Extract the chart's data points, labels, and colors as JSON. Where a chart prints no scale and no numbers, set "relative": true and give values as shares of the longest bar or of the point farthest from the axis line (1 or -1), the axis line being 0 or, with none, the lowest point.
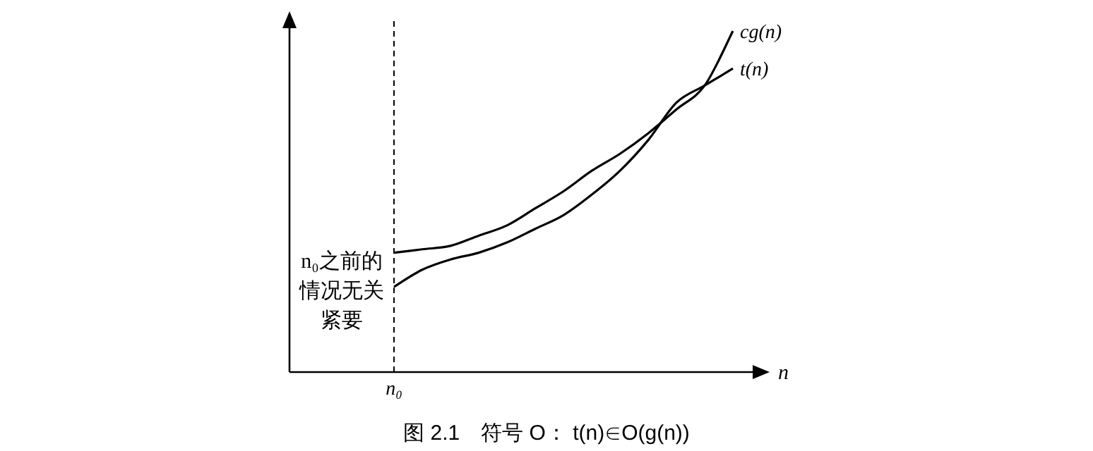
{
  "chart_data": {
    "type": "line",
    "relative": true,
    "title": "图 2.1　符号 O：  t(n)∈O(g(n))",
    "xlabel": "n",
    "categories": [
      null,
      null,
      null,
      null,
      null,
      null,
      null,
      null,
      null,
      null,
      null,
      null,
      null
    ],
    "series": [
      {
        "name": "cg(n)",
        "color": "#000000",
        "values": [
          0.35,
          0.36,
          0.37,
          0.4,
          0.43,
          0.48,
          0.53,
          0.59,
          0.64,
          0.7,
          0.77,
          0.84,
          1.0
        ]
      },
      {
        "name": "t(n)",
        "color": "#000000",
        "values": [
          0.25,
          0.3,
          0.33,
          0.35,
          0.38,
          0.42,
          0.46,
          0.52,
          0.59,
          0.68,
          0.79,
          0.84,
          0.89
        ]
      }
    ],
    "ref_lines": [
      {
        "axis": "x",
        "label": "n₀",
        "line_style": "dashed",
        "color": "#000000"
      }
    ],
    "annotations": [
      "n₀之前的情况无关紧要"
    ],
    "marker": "none",
    "line_style": "solid"
  }
}
